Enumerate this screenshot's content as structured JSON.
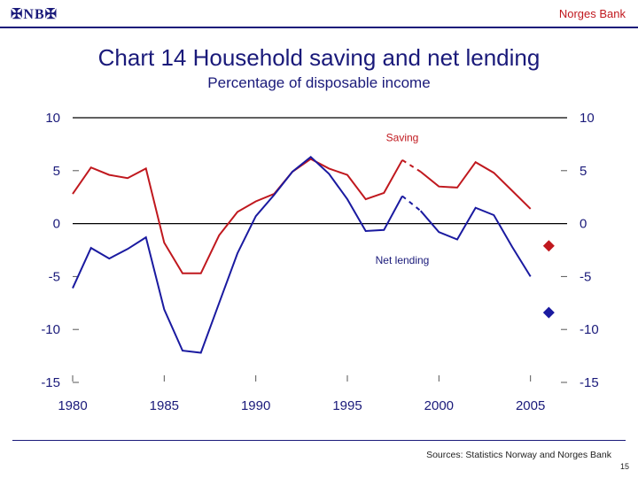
{
  "header": {
    "logo_text": "NB",
    "brand": "Norges Bank"
  },
  "footer": {
    "source": "Sources: Statistics Norway and Norges Bank",
    "page": "15"
  },
  "colors": {
    "saving": "#c0181e",
    "net_lending": "#1a1aa0",
    "text": "#1a1a7a"
  },
  "chart_data": {
    "type": "line",
    "title": "Chart 14 Household saving and net lending",
    "subtitle": "Percentage of disposable income",
    "xlabel": "",
    "ylabel": "",
    "xlim": [
      1980,
      2007
    ],
    "ylim": [
      -15,
      10
    ],
    "yticks": [
      10,
      5,
      0,
      -5,
      -10,
      -15
    ],
    "xticks": [
      1980,
      1985,
      1990,
      1995,
      2000,
      2005
    ],
    "grid": false,
    "reference_lines": [
      0,
      10
    ],
    "series": [
      {
        "name": "Saving",
        "color": "#c0181e",
        "x": [
          1980,
          1981,
          1982,
          1983,
          1984,
          1985,
          1986,
          1987,
          1988,
          1989,
          1990,
          1991,
          1992,
          1993,
          1994,
          1995,
          1996,
          1997,
          1998,
          1999,
          2000,
          2001,
          2002,
          2003,
          2004,
          2005
        ],
        "values": [
          2.8,
          5.3,
          4.6,
          4.3,
          5.2,
          -1.8,
          -4.7,
          -4.7,
          -1.1,
          1.1,
          2.1,
          2.8,
          4.9,
          6.1,
          5.2,
          4.6,
          2.3,
          2.9,
          6.0,
          4.9,
          3.5,
          3.4,
          5.8,
          4.8,
          3.1,
          1.4
        ],
        "dashed_from": 1998,
        "dashed_to": 1999
      },
      {
        "name": "Net lending",
        "color": "#1a1aa0",
        "x": [
          1980,
          1981,
          1982,
          1983,
          1984,
          1985,
          1986,
          1987,
          1988,
          1989,
          1990,
          1991,
          1992,
          1993,
          1994,
          1995,
          1996,
          1997,
          1998,
          1999,
          2000,
          2001,
          2002,
          2003,
          2004,
          2005
        ],
        "values": [
          -6.1,
          -2.3,
          -3.3,
          -2.4,
          -1.3,
          -8.1,
          -12.0,
          -12.2,
          -7.5,
          -2.8,
          0.7,
          2.7,
          4.9,
          6.3,
          4.7,
          2.3,
          -0.7,
          -0.6,
          2.6,
          1.2,
          -0.8,
          -1.5,
          1.5,
          0.8,
          -2.2,
          -5.0
        ],
        "dashed_from": 1998,
        "dashed_to": 1999
      }
    ],
    "points": [
      {
        "series": "Saving",
        "x": 2006,
        "value": -2.1,
        "color": "#c0181e"
      },
      {
        "series": "Net lending",
        "x": 2006,
        "value": -8.4,
        "color": "#1a1aa0"
      }
    ],
    "annotations": [
      {
        "text": "Saving",
        "x": 1998,
        "value": 7.8,
        "color": "#c0181e"
      },
      {
        "text": "Net lending",
        "x": 1998,
        "value": -3.8,
        "color": "#1a1a7a"
      }
    ]
  }
}
